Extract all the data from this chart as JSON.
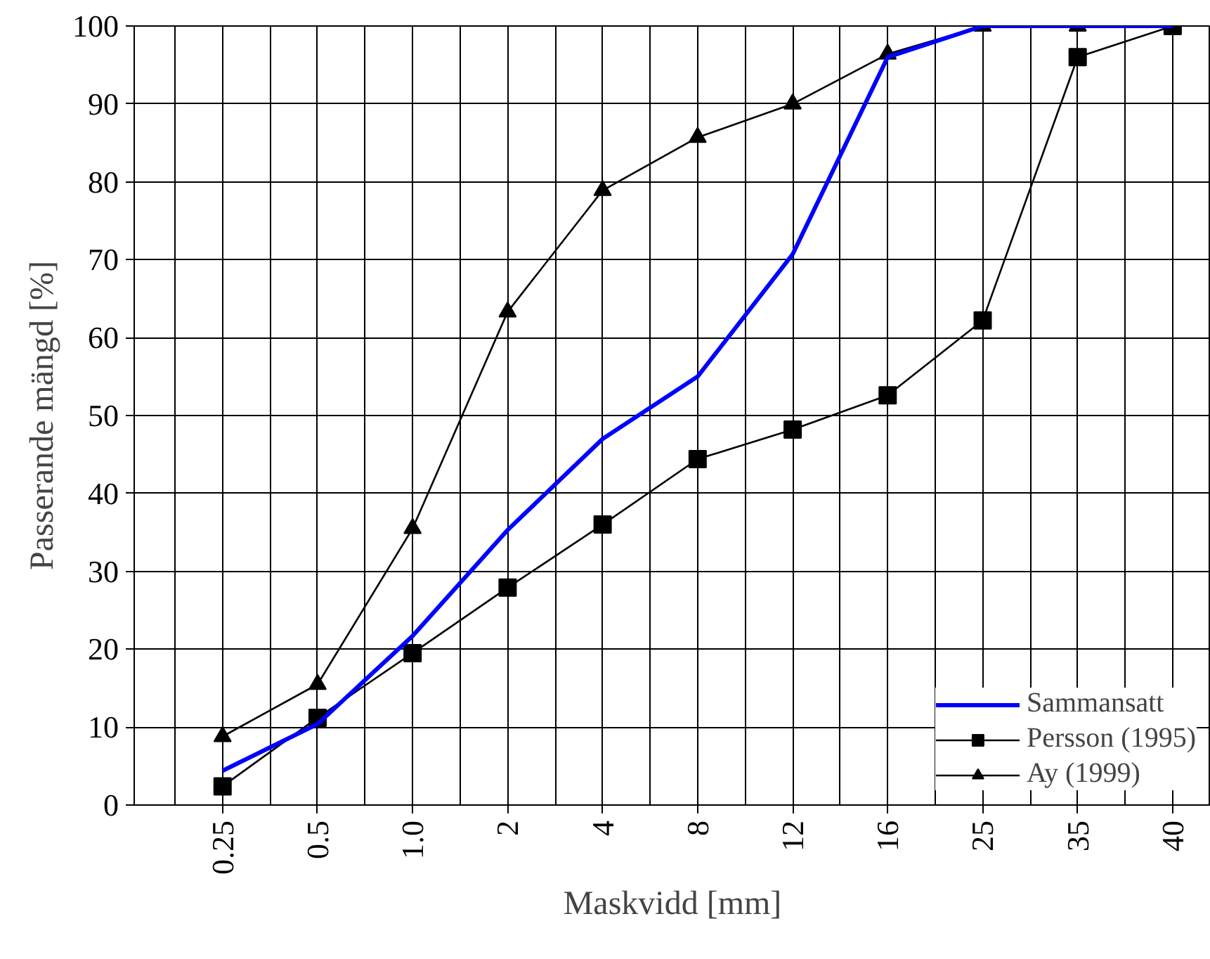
{
  "chart_data": {
    "type": "line",
    "xlabel": "Maskvidd [mm]",
    "ylabel": "Passerande mängd [%]",
    "categories": [
      "0.25",
      "0.5",
      "1.0",
      "2",
      "4",
      "8",
      "12",
      "16",
      "25",
      "35",
      "40"
    ],
    "ylim": [
      0,
      100
    ],
    "yticks": [
      0,
      10,
      20,
      30,
      40,
      50,
      60,
      70,
      80,
      90,
      100
    ],
    "grid": true,
    "legend": "bottom right",
    "series": [
      {
        "name": "Sammansatt",
        "color": "#0000ff",
        "marker": "none",
        "values": [
          4.4,
          10.4,
          21.7,
          35.3,
          47,
          55,
          70.7,
          96,
          100,
          100,
          100
        ]
      },
      {
        "name": "Persson (1995)",
        "color": "#000000",
        "marker": "square",
        "values": [
          2.4,
          11.2,
          19.5,
          27.9,
          36,
          44.4,
          48.2,
          52.6,
          62.2,
          96,
          100
        ]
      },
      {
        "name": "Ay (1999)",
        "color": "#000000",
        "marker": "triangle",
        "values": [
          8.8,
          15.5,
          35.5,
          63.3,
          78.9,
          85.7,
          90,
          96.4,
          100,
          100,
          100
        ]
      }
    ]
  }
}
